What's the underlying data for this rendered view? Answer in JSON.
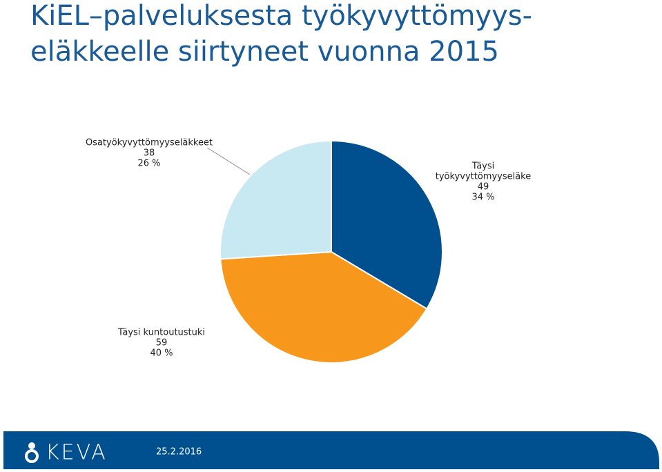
{
  "chart_data": {
    "type": "pie",
    "title": [
      "KiEL–palveluksesta työkyvyttömyys-",
      "eläkkeelle siirtyneet vuonna 2015"
    ],
    "categories": [
      "Täysi työkyvyttömyyseläke",
      "Täysi kuntoutustuki",
      "Osatyökyvyttömyyseläkkeet"
    ],
    "category_lines": [
      [
        "Täysi",
        "työkyvyttömyyseläke"
      ],
      [
        "Täysi kuntoutustuki"
      ],
      [
        "Osatyökyvyttömyyseläkkeet"
      ]
    ],
    "values": [
      49,
      59,
      38
    ],
    "percent_labels": [
      "34 %",
      "40 %",
      "26 %"
    ],
    "colors": [
      "#00508f",
      "#f7981d",
      "#c8e9f1"
    ]
  },
  "footer": {
    "logo": "KEVA",
    "date": "25.2.2016"
  }
}
